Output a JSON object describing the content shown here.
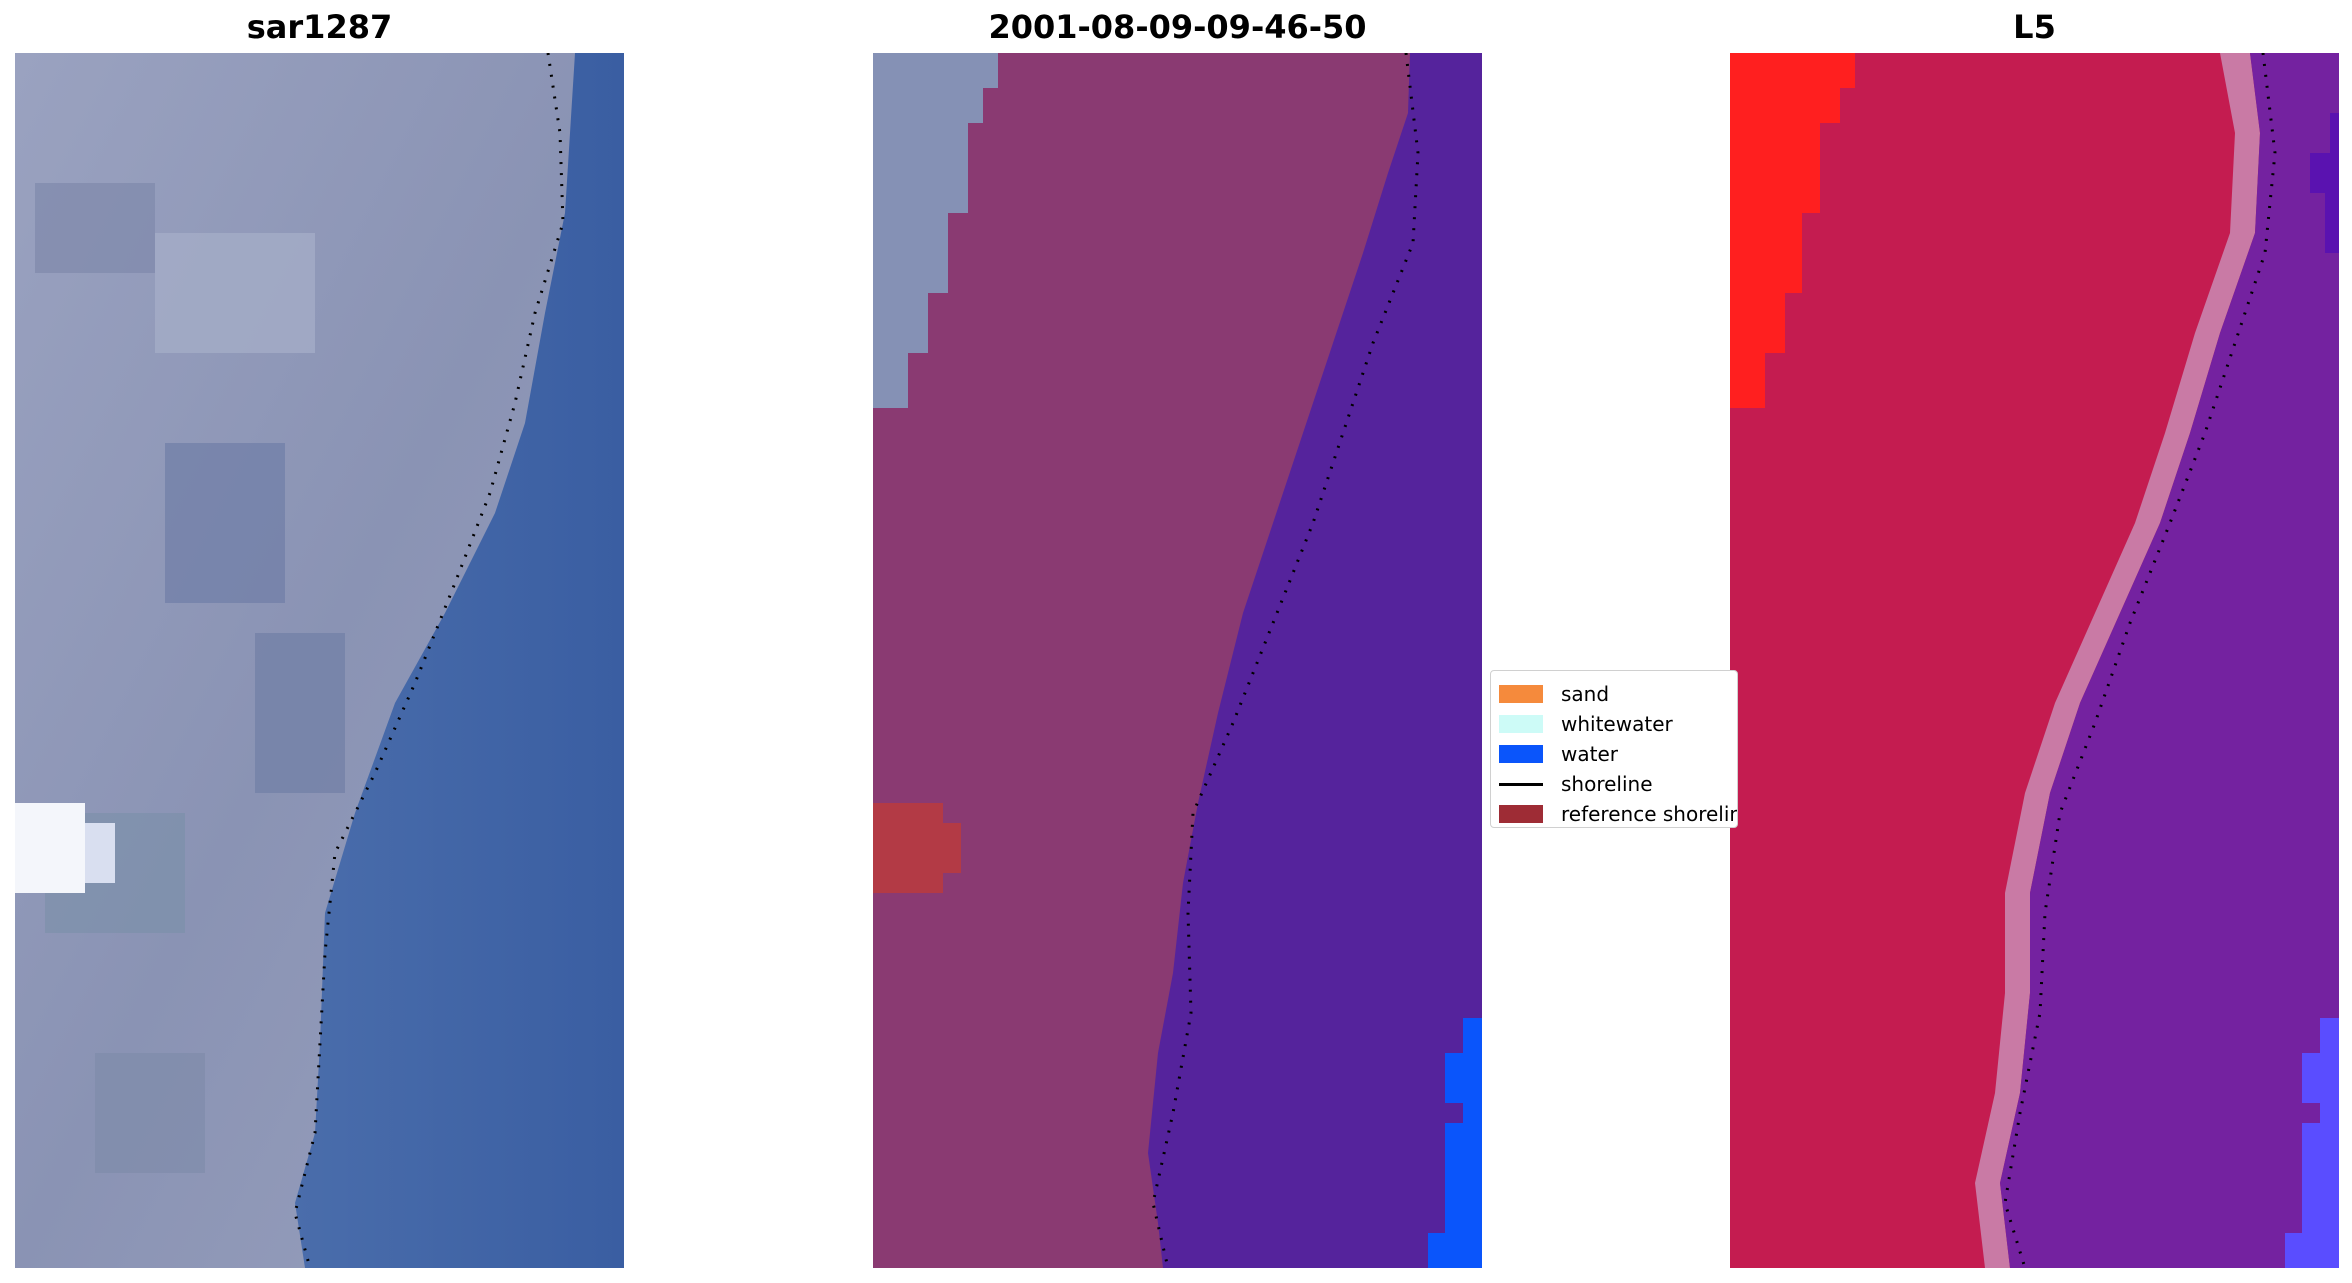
{
  "panels": [
    {
      "title": "sar1287",
      "image": "satellite-rgb-image",
      "colors": {
        "land": "#8f97b8",
        "water": "#3e62a4",
        "bright_patch": "#ffffff"
      }
    },
    {
      "title": "2001-08-09-09-46-50",
      "image": "classified-image",
      "colors": {
        "land": "#8a3a72",
        "water": "#55239c",
        "water_class": "#0a55fb",
        "reference_patch": "#b33a45",
        "unclassified": "#8591b5"
      }
    },
    {
      "title": "L5",
      "image": "mndwi-image",
      "colors": {
        "land": "#c41c50",
        "water": "#7422a0",
        "bright_land": "#ff1a1a",
        "transition": "#c97aa5",
        "water_edge": "#5a4dff"
      }
    }
  ],
  "legend": {
    "items": [
      {
        "label": "sand",
        "type": "patch",
        "color": "#f58a3c"
      },
      {
        "label": "whitewater",
        "type": "patch",
        "color": "#cdfbf7"
      },
      {
        "label": "water",
        "type": "patch",
        "color": "#0a55fb"
      },
      {
        "label": "shoreline",
        "type": "line",
        "color": "#000000"
      },
      {
        "label": "reference shoreline",
        "type": "patch",
        "color": "#9e2c35"
      }
    ]
  }
}
